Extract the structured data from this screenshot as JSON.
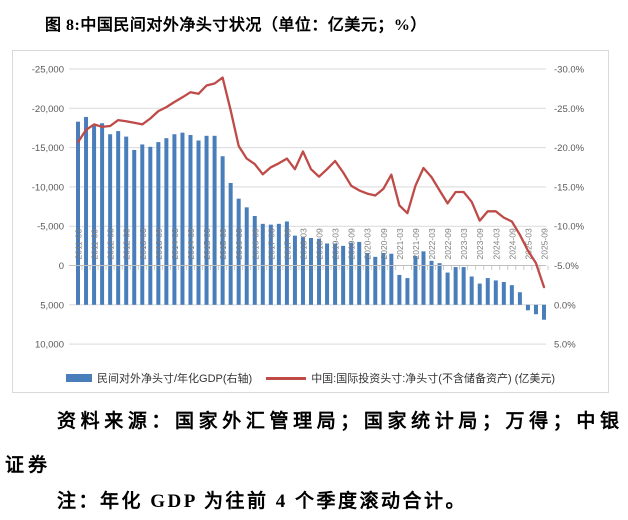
{
  "figure": {
    "title": "图 8:中国民间对外净头寸状况（单位：亿美元；%）",
    "source_note": "资料来源：国家外汇管理局；国家统计局；万得；中银证券",
    "footnote": "注：年化 GDP 为往前 4 个季度滚动合计。"
  },
  "chart_data": {
    "type": "bar+line combo, dual value axes, both inverted (negative up)",
    "categories": [
      "2011-03",
      "2011-06",
      "2011-09",
      "2011-12",
      "2012-03",
      "2012-06",
      "2012-09",
      "2012-12",
      "2013-03",
      "2013-06",
      "2013-09",
      "2013-12",
      "2014-03",
      "2014-06",
      "2014-09",
      "2014-12",
      "2015-03",
      "2015-06",
      "2015-09",
      "2015-12",
      "2016-03",
      "2016-06",
      "2016-09",
      "2016-12",
      "2017-03",
      "2017-06",
      "2017-09",
      "2017-12",
      "2018-03",
      "2018-06",
      "2018-09",
      "2018-12",
      "2019-03",
      "2019-06",
      "2019-09",
      "2019-12",
      "2020-03",
      "2020-06",
      "2020-09",
      "2020-12",
      "2021-03",
      "2021-06",
      "2021-09",
      "2021-12",
      "2022-03",
      "2022-06",
      "2022-09",
      "2022-12",
      "2023-03",
      "2023-06",
      "2023-09",
      "2023-12",
      "2024-03",
      "2024-06",
      "2024-09",
      "2024-12",
      "2025-03",
      "2025-06",
      "2025-09"
    ],
    "x_tick_every": 2,
    "series": [
      {
        "name": "民间对外净头寸/年化GDP(右轴)",
        "type": "bar",
        "axis": "right",
        "unit": "%",
        "color": "#4a7ebb",
        "values": [
          -23.3,
          -23.9,
          -22.8,
          -23.1,
          -21.7,
          -22.1,
          -21.4,
          -19.7,
          -20.4,
          -20.1,
          -20.7,
          -21.2,
          -21.7,
          -21.9,
          -21.6,
          -20.9,
          -21.5,
          -21.5,
          -18.9,
          -15.5,
          -13.5,
          -12.4,
          -11.3,
          -10.3,
          -10.2,
          -10.3,
          -10.6,
          -8.8,
          -8.6,
          -8.5,
          -8.4,
          -7.8,
          -7.8,
          -7.5,
          -7.9,
          -8.0,
          -6.6,
          -6.1,
          -6.6,
          -6.5,
          -3.8,
          -3.4,
          -6.2,
          -6.8,
          -5.6,
          -5.3,
          -4.1,
          -4.8,
          -4.8,
          -3.6,
          -2.7,
          -3.4,
          -3.1,
          -2.9,
          -2.5,
          -1.6,
          0.7,
          1.2,
          1.9
        ]
      },
      {
        "name": "中国:国际投资头寸:净头寸(不含储备资产) (亿美元)",
        "type": "line",
        "axis": "left",
        "unit": "亿美元",
        "color": "#be4b48",
        "values": [
          -15700,
          -17250,
          -17950,
          -17650,
          -17750,
          -18500,
          -18350,
          -18150,
          -17950,
          -18700,
          -19650,
          -20150,
          -20800,
          -21400,
          -22050,
          -21850,
          -22900,
          -23150,
          -23900,
          -19750,
          -15200,
          -13600,
          -12900,
          -11600,
          -12500,
          -13000,
          -13600,
          -12250,
          -14500,
          -12250,
          -11300,
          -12250,
          -13300,
          -11850,
          -10150,
          -9550,
          -9150,
          -8900,
          -9750,
          -11550,
          -7650,
          -6650,
          -10150,
          -12400,
          -11250,
          -9550,
          -7900,
          -9350,
          -9350,
          -8100,
          -5700,
          -6900,
          -6900,
          -6100,
          -5600,
          -3900,
          -1900,
          -300,
          2750
        ]
      }
    ],
    "left_axis": {
      "title": "亿美元",
      "min": -25000,
      "max": 10000,
      "step": 5000,
      "inverted": true,
      "labels": [
        "-25,000",
        "-20,000",
        "-15,000",
        "-10,000",
        "-5,000",
        "0",
        "5,000",
        "10,000"
      ]
    },
    "right_axis": {
      "title": "%",
      "min": -30,
      "max": 5,
      "step": 5,
      "inverted": true,
      "labels": [
        "-30.0%",
        "-25.0%",
        "-20.0%",
        "-15.0%",
        "-10.0%",
        "-5.0%",
        "0.0%",
        "5.0%"
      ]
    },
    "grid": true,
    "gridline_color": "#d9d9d9",
    "axis_text_color": "#595959",
    "x_label_color": "#7f7f7f",
    "legend_position": "bottom"
  }
}
